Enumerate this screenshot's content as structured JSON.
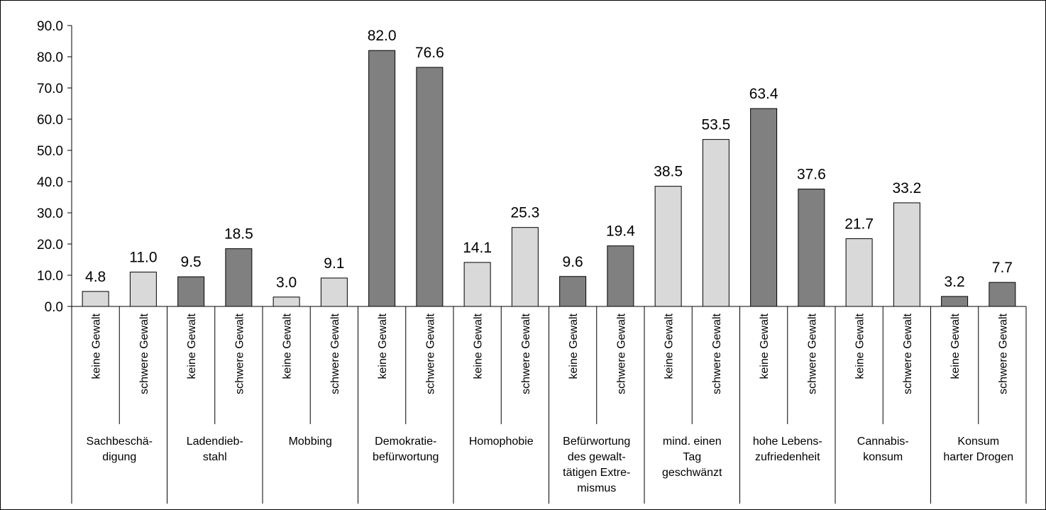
{
  "chart_data": {
    "type": "bar",
    "ylim": [
      0,
      90
    ],
    "yticks": [
      "0.0",
      "10.0",
      "20.0",
      "30.0",
      "40.0",
      "50.0",
      "60.0",
      "70.0",
      "80.0",
      "90.0"
    ],
    "grid": false,
    "legend": "none",
    "colors": {
      "dark": "#808080",
      "light": "#d9d9d9"
    },
    "groups": [
      {
        "label": [
          "Sachbeschä-",
          "digung"
        ],
        "bars": [
          {
            "sub": "keine Gewalt",
            "value": 4.8,
            "label": "4.8",
            "shade": "light"
          },
          {
            "sub": "schwere Gewalt",
            "value": 11.0,
            "label": "11.0",
            "shade": "light"
          }
        ]
      },
      {
        "label": [
          "Ladendieb-",
          "stahl"
        ],
        "bars": [
          {
            "sub": "keine Gewalt",
            "value": 9.5,
            "label": "9.5",
            "shade": "dark"
          },
          {
            "sub": "schwere Gewalt",
            "value": 18.5,
            "label": "18.5",
            "shade": "dark"
          }
        ]
      },
      {
        "label": [
          "Mobbing"
        ],
        "bars": [
          {
            "sub": "keine Gewalt",
            "value": 3.0,
            "label": "3.0",
            "shade": "light"
          },
          {
            "sub": "schwere Gewalt",
            "value": 9.1,
            "label": "9.1",
            "shade": "light"
          }
        ]
      },
      {
        "label": [
          "Demokratie-",
          "befürwortung"
        ],
        "bars": [
          {
            "sub": "keine Gewalt",
            "value": 82.0,
            "label": "82.0",
            "shade": "dark"
          },
          {
            "sub": "schwere Gewalt",
            "value": 76.6,
            "label": "76.6",
            "shade": "dark"
          }
        ]
      },
      {
        "label": [
          "Homophobie"
        ],
        "bars": [
          {
            "sub": "keine Gewalt",
            "value": 14.1,
            "label": "14.1",
            "shade": "light"
          },
          {
            "sub": "schwere Gewalt",
            "value": 25.3,
            "label": "25.3",
            "shade": "light"
          }
        ]
      },
      {
        "label": [
          "Befürwortung",
          "des gewalt-",
          "tätigen Extre-",
          "mismus"
        ],
        "bars": [
          {
            "sub": "keine Gewalt",
            "value": 9.6,
            "label": "9.6",
            "shade": "dark"
          },
          {
            "sub": "schwere Gewalt",
            "value": 19.4,
            "label": "19.4",
            "shade": "dark"
          }
        ]
      },
      {
        "label": [
          "mind. einen",
          "Tag",
          "geschwänzt"
        ],
        "bars": [
          {
            "sub": "keine Gewalt",
            "value": 38.5,
            "label": "38.5",
            "shade": "light"
          },
          {
            "sub": "schwere Gewalt",
            "value": 53.5,
            "label": "53.5",
            "shade": "light"
          }
        ]
      },
      {
        "label": [
          "hohe Lebens-",
          "zufriedenheit"
        ],
        "bars": [
          {
            "sub": "keine Gewalt",
            "value": 63.4,
            "label": "63.4",
            "shade": "dark"
          },
          {
            "sub": "schwere Gewalt",
            "value": 37.6,
            "label": "37.6",
            "shade": "dark"
          }
        ]
      },
      {
        "label": [
          "Cannabis-",
          "konsum"
        ],
        "bars": [
          {
            "sub": "keine Gewalt",
            "value": 21.7,
            "label": "21.7",
            "shade": "light"
          },
          {
            "sub": "schwere Gewalt",
            "value": 33.2,
            "label": "33.2",
            "shade": "light"
          }
        ]
      },
      {
        "label": [
          "Konsum",
          "harter Drogen"
        ],
        "bars": [
          {
            "sub": "keine Gewalt",
            "value": 3.2,
            "label": "3.2",
            "shade": "dark"
          },
          {
            "sub": "schwere Gewalt",
            "value": 7.7,
            "label": "7.7",
            "shade": "dark"
          }
        ]
      }
    ]
  }
}
